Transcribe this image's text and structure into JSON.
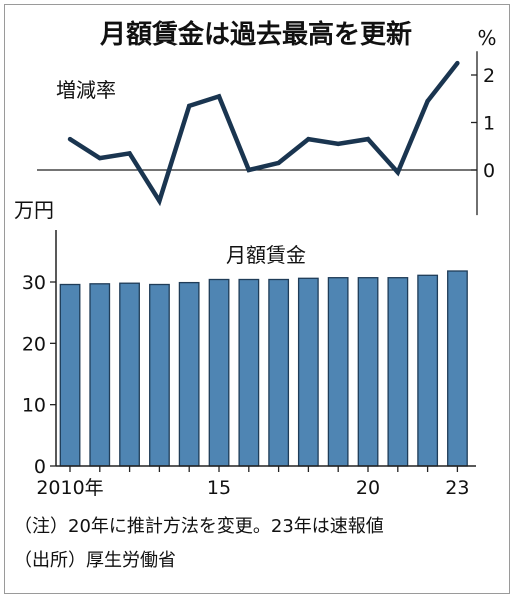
{
  "title": "月額賃金は過去最高を更新",
  "notes": {
    "note": "（注）20年に推計方法を変更。23年は速報値",
    "source": "（出所）厚生労働省"
  },
  "colors": {
    "line": "#1a3550",
    "bar_fill": "#4f85b3",
    "bar_stroke": "#1f3c58",
    "axis": "#222222"
  },
  "chart_data": [
    {
      "type": "line",
      "title": "",
      "series": [
        {
          "name": "増減率",
          "x": [
            2010,
            2011,
            2012,
            2013,
            2014,
            2015,
            2016,
            2017,
            2018,
            2019,
            2020,
            2021,
            2022,
            2023
          ],
          "values": [
            0.65,
            0.25,
            0.35,
            -0.65,
            1.35,
            1.55,
            0.0,
            0.15,
            0.65,
            0.55,
            0.65,
            -0.05,
            1.45,
            2.25
          ]
        }
      ],
      "yunit": "%",
      "ylim": [
        -0.95,
        2.5
      ],
      "yticks": [
        0,
        1,
        2
      ],
      "grid": false
    },
    {
      "type": "bar",
      "title": "月額賃金",
      "categories": [
        "2010",
        "2011",
        "2012",
        "2013",
        "2014",
        "2015",
        "2016",
        "2017",
        "2018",
        "2019",
        "2020",
        "2021",
        "2022",
        "2023"
      ],
      "values": [
        29.6,
        29.7,
        29.8,
        29.6,
        29.9,
        30.4,
        30.4,
        30.4,
        30.6,
        30.7,
        30.7,
        30.7,
        31.1,
        31.8
      ],
      "yunit": "万円",
      "ylim": [
        0,
        37.5
      ],
      "yticks": [
        0,
        10,
        20,
        30
      ],
      "xticks": [
        {
          "at": "2010",
          "label": "2010年"
        },
        {
          "at": "2015",
          "label": "15"
        },
        {
          "at": "2020",
          "label": "20"
        },
        {
          "at": "2023",
          "label": "23"
        }
      ],
      "grid": false
    }
  ]
}
